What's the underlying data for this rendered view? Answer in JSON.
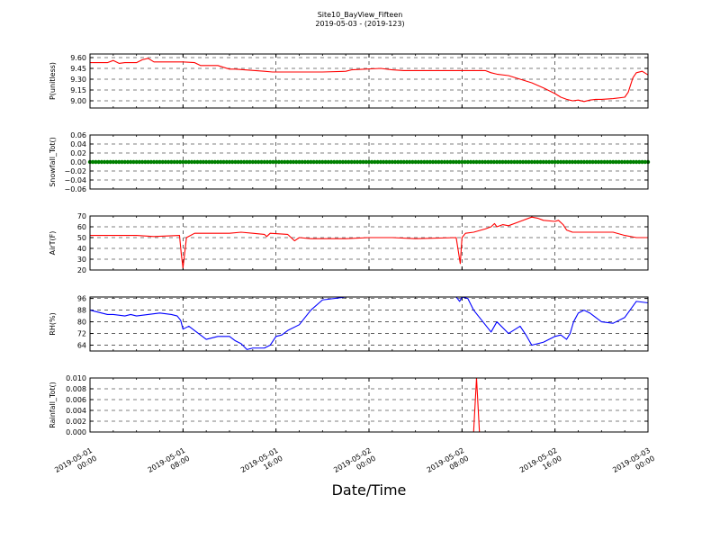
{
  "figure": {
    "title": "Site10_BayView_Fifteen",
    "subtitle": "2019-05-03 - (2019-123)",
    "xlabel": "Date/Time",
    "x_ticks": [
      [
        "2019-05-01",
        "00:00"
      ],
      [
        "2019-05-01",
        "08:00"
      ],
      [
        "2019-05-01",
        "16:00"
      ],
      [
        "2019-05-02",
        "00:00"
      ],
      [
        "2019-05-02",
        "08:00"
      ],
      [
        "2019-05-02",
        "16:00"
      ],
      [
        "2019-05-03",
        "00:00"
      ]
    ]
  },
  "chart_data": [
    {
      "type": "line",
      "ylabel": "P(unitless)",
      "ylim": [
        8.9,
        9.65
      ],
      "yticks": [
        "9.60",
        "9.45",
        "9.30",
        "9.15",
        "9.00"
      ],
      "ytick_values": [
        9.6,
        9.45,
        9.3,
        9.15,
        9.0
      ],
      "xlim_hours": [
        0,
        48
      ],
      "grid": true,
      "series": [
        {
          "color": "#ff0000",
          "x": [
            0,
            1.5,
            2,
            2.5,
            3,
            4,
            4.5,
            5,
            5.5,
            6,
            7,
            8,
            9,
            9.5,
            11,
            12,
            12.5,
            15,
            15.7,
            16,
            17,
            20,
            22,
            22.5,
            25,
            26,
            27,
            28,
            30,
            33,
            34,
            34.5,
            35,
            36,
            37,
            38,
            39,
            40,
            40.5,
            41,
            41.5,
            42,
            42.5,
            43,
            43.5,
            44,
            45,
            46,
            46.3,
            46.7,
            47,
            47.5,
            48
          ],
          "y": [
            9.53,
            9.53,
            9.56,
            9.52,
            9.53,
            9.53,
            9.57,
            9.59,
            9.54,
            9.54,
            9.54,
            9.54,
            9.53,
            9.49,
            9.49,
            9.44,
            9.44,
            9.41,
            9.4,
            9.4,
            9.4,
            9.4,
            9.41,
            9.43,
            9.45,
            9.43,
            9.42,
            9.42,
            9.42,
            9.42,
            9.42,
            9.39,
            9.37,
            9.35,
            9.3,
            9.25,
            9.18,
            9.1,
            9.05,
            9.02,
            9.0,
            9.01,
            8.99,
            9.01,
            9.02,
            9.02,
            9.03,
            9.05,
            9.12,
            9.32,
            9.39,
            9.41,
            9.36
          ]
        }
      ]
    },
    {
      "type": "scatter",
      "ylabel": "Snowfall_Tot()",
      "ylim": [
        -0.06,
        0.06
      ],
      "yticks": [
        "0.06",
        "0.04",
        "0.02",
        "0.00",
        "−0.02",
        "−0.04",
        "−0.06"
      ],
      "ytick_values": [
        0.06,
        0.04,
        0.02,
        0.0,
        -0.02,
        -0.04,
        -0.06
      ],
      "xlim_hours": [
        0,
        48
      ],
      "grid": true,
      "series": [
        {
          "color": "#008000",
          "constant": 0.0,
          "step_hours": 0.25
        }
      ]
    },
    {
      "type": "line",
      "ylabel": "AirT(F)",
      "ylim": [
        20,
        70
      ],
      "yticks": [
        "70",
        "60",
        "50",
        "40",
        "30",
        "20"
      ],
      "ytick_values": [
        70,
        60,
        50,
        40,
        30,
        20
      ],
      "xlim_hours": [
        0,
        48
      ],
      "grid": true,
      "series": [
        {
          "color": "#ff0000",
          "x": [
            0,
            4,
            5.5,
            7.7,
            7.85,
            8.0,
            8.3,
            9,
            11,
            12,
            13,
            14,
            15,
            15.2,
            15.5,
            17,
            17.3,
            17.6,
            18,
            19,
            20,
            22,
            24,
            26,
            28,
            31.5,
            31.85,
            32.0,
            32.3,
            33,
            34,
            34.5,
            34.8,
            35,
            35.5,
            36,
            37,
            38,
            38.5,
            39,
            40,
            40.3,
            40.7,
            41,
            41.5,
            42,
            44,
            45,
            46,
            47,
            48
          ],
          "y": [
            52,
            52,
            51,
            52,
            35,
            22,
            50,
            54,
            54,
            54,
            55,
            54,
            53,
            51,
            54,
            53,
            50,
            47,
            50,
            49,
            49,
            49,
            50,
            50,
            49,
            50,
            26,
            50,
            54,
            55,
            58,
            60,
            63,
            60,
            62,
            61,
            65,
            69,
            68,
            66,
            65,
            66,
            62,
            57,
            55,
            55,
            55,
            55,
            52,
            50,
            50
          ]
        }
      ]
    },
    {
      "type": "line",
      "ylabel": "RH(%)",
      "ylim": [
        60,
        97
      ],
      "yticks": [
        "96",
        "88",
        "80",
        "72",
        "64"
      ],
      "ytick_values": [
        96,
        88,
        80,
        72,
        64
      ],
      "xlim_hours": [
        0,
        48
      ],
      "grid": true,
      "series": [
        {
          "color": "#0000ff",
          "x": [
            0,
            1,
            1.5,
            2,
            3,
            3.5,
            4,
            5,
            6,
            7,
            7.5,
            7.8,
            8,
            8.5,
            9,
            10,
            11,
            12,
            12.5,
            13,
            13.5,
            14,
            15,
            15.5,
            16,
            16.5,
            17,
            18,
            19,
            20,
            22,
            24,
            28,
            31.5,
            31.8,
            32,
            32.5,
            33,
            34,
            34.5,
            35,
            36,
            37,
            37.5,
            38,
            39,
            39.5,
            40,
            40.5,
            41,
            41.3,
            41.6,
            42,
            42.5,
            43,
            44,
            45,
            46,
            47,
            48
          ],
          "y": [
            88,
            86,
            85,
            85,
            84,
            85,
            84,
            85,
            86,
            85,
            84,
            81,
            75,
            77,
            74,
            68,
            70,
            70,
            67,
            65,
            61,
            62,
            62,
            64,
            70,
            71,
            74,
            78,
            88,
            95,
            97,
            97,
            97,
            97,
            94,
            97,
            96,
            88,
            78,
            73,
            80,
            72,
            77,
            71,
            64,
            66,
            68,
            70,
            71,
            68,
            72,
            80,
            86,
            88,
            86,
            80,
            79,
            83,
            94,
            93
          ]
        }
      ]
    },
    {
      "type": "line",
      "ylabel": "Rainfall_Tot()",
      "ylim": [
        0,
        0.01
      ],
      "yticks": [
        "0.010",
        "0.008",
        "0.006",
        "0.004",
        "0.002",
        "0.000"
      ],
      "ytick_values": [
        0.01,
        0.008,
        0.006,
        0.004,
        0.002,
        0.0
      ],
      "xlim_hours": [
        0,
        48
      ],
      "grid": true,
      "series": [
        {
          "color": "#ff0000",
          "x": [
            0,
            33.0,
            33.25,
            33.5,
            48
          ],
          "y": [
            0,
            0,
            0.01,
            0,
            0
          ]
        }
      ]
    }
  ]
}
